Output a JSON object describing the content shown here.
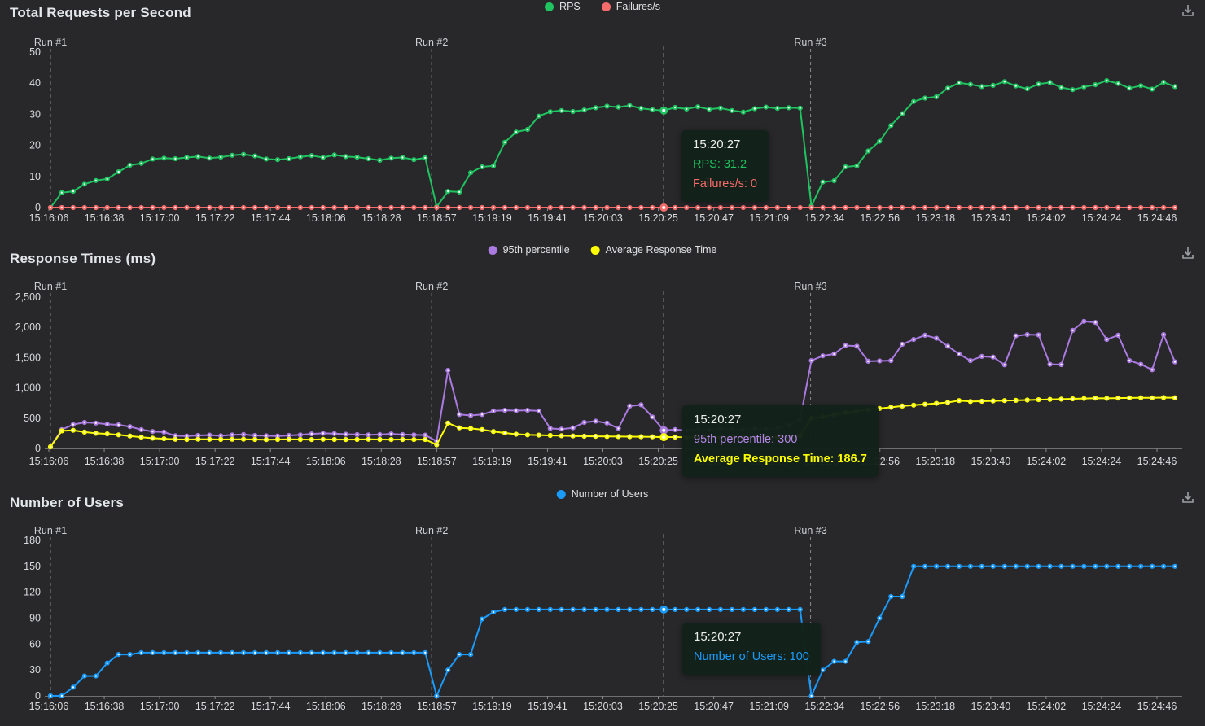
{
  "page": {
    "background": "#28282b"
  },
  "x_labels": [
    "15:16:06",
    "15:16:38",
    "15:17:00",
    "15:17:22",
    "15:17:44",
    "15:18:06",
    "15:18:28",
    "15:18:57",
    "15:19:19",
    "15:19:41",
    "15:20:03",
    "15:20:25",
    "15:20:47",
    "15:21:09",
    "15:22:34",
    "15:22:56",
    "15:23:18",
    "15:23:40",
    "15:24:02",
    "15:24:24",
    "15:24:46"
  ],
  "run_markers": [
    {
      "label": "Run #1",
      "frac": 0.0
    },
    {
      "label": "Run #2",
      "frac": 0.339
    },
    {
      "label": "Run #3",
      "frac": 0.676
    }
  ],
  "cursor": {
    "time": "15:20:27",
    "frac": 0.5454,
    "index": 54
  },
  "chart_data": [
    {
      "type": "line",
      "title": "Total Requests per Second",
      "y_max": 50,
      "y_ticks": [
        "0",
        "10",
        "20",
        "30",
        "40",
        "50"
      ],
      "legend": [
        {
          "label": "RPS",
          "color": "#1fc35f"
        },
        {
          "label": "Failures/s",
          "color": "#f96c6c"
        }
      ],
      "series": [
        {
          "name": "RPS",
          "color": "#1fc35f",
          "values": [
            0,
            4.8,
            5.2,
            7.5,
            8.7,
            9.2,
            11.5,
            13.6,
            14.2,
            15.6,
            15.9,
            15.7,
            16.1,
            16.4,
            15.9,
            16.2,
            16.8,
            17.1,
            16.6,
            15.6,
            15.4,
            15.7,
            16.3,
            16.7,
            16.1,
            16.9,
            16.4,
            16.2,
            15.7,
            15.2,
            15.9,
            16.1,
            15.4,
            16,
            0.3,
            5.2,
            5,
            11.2,
            13.1,
            13.4,
            21,
            24.3,
            25.1,
            29.4,
            30.8,
            31.2,
            30.9,
            31.4,
            32.1,
            32.6,
            32.3,
            32.8,
            31.9,
            31.5,
            31.2,
            32.2,
            31.7,
            32.4,
            31.6,
            32,
            31.2,
            30.7,
            31.8,
            32.3,
            31.9,
            32.1,
            32,
            0.5,
            8.2,
            8.6,
            13.1,
            13.4,
            18.2,
            21.3,
            26.4,
            30.2,
            34.1,
            35.2,
            35.6,
            38.4,
            40.1,
            39.6,
            38.9,
            39.3,
            40.5,
            39.1,
            38.2,
            39.7,
            40.2,
            38.6,
            37.9,
            38.8,
            39.5,
            40.8,
            39.9,
            38.4,
            39.2,
            38.1,
            40.3,
            38.9
          ]
        },
        {
          "name": "Failures/s",
          "color": "#f96c6c",
          "values": [
            0,
            0,
            0,
            0,
            0,
            0,
            0,
            0,
            0,
            0,
            0,
            0,
            0,
            0,
            0,
            0,
            0,
            0,
            0,
            0,
            0,
            0,
            0,
            0,
            0,
            0,
            0,
            0,
            0,
            0,
            0,
            0,
            0,
            0,
            0,
            0,
            0,
            0,
            0,
            0,
            0,
            0,
            0,
            0,
            0,
            0,
            0,
            0,
            0,
            0,
            0,
            0,
            0,
            0,
            0,
            0,
            0,
            0,
            0,
            0,
            0,
            0,
            0,
            0,
            0,
            0,
            0,
            0,
            0,
            0,
            0,
            0,
            0,
            0,
            0,
            0,
            0,
            0,
            0,
            0,
            0,
            0,
            0,
            0,
            0,
            0,
            0,
            0,
            0,
            0,
            0,
            0,
            0,
            0,
            0,
            0,
            0,
            0,
            0,
            0
          ]
        }
      ],
      "tooltip": {
        "title": "15:20:27",
        "rows": [
          {
            "text": "RPS: 31.2",
            "color": "#1fc35f",
            "bold": false
          },
          {
            "text": "Failures/s: 0",
            "color": "#f96c6c",
            "bold": false
          }
        ]
      }
    },
    {
      "type": "line",
      "title": "Response Times (ms)",
      "y_max": 2500,
      "y_ticks": [
        "0",
        "500",
        "1,000",
        "1,500",
        "2,000",
        "2,500"
      ],
      "legend": [
        {
          "label": "95th percentile",
          "color": "#aa7ae0"
        },
        {
          "label": "Average Response Time",
          "color": "#fdff00"
        }
      ],
      "series": [
        {
          "name": "95th percentile",
          "color": "#aa7ae0",
          "values": [
            30,
            310,
            395,
            430,
            420,
            400,
            390,
            360,
            310,
            280,
            270,
            210,
            205,
            215,
            220,
            210,
            225,
            230,
            215,
            210,
            205,
            215,
            225,
            240,
            250,
            245,
            235,
            230,
            225,
            230,
            240,
            230,
            225,
            220,
            120,
            1290,
            560,
            545,
            560,
            620,
            630,
            625,
            630,
            620,
            330,
            320,
            340,
            430,
            450,
            420,
            330,
            700,
            720,
            520,
            300,
            310,
            300,
            320,
            310,
            330,
            320,
            310,
            330,
            320,
            340,
            380,
            480,
            1450,
            1530,
            1560,
            1700,
            1690,
            1440,
            1445,
            1450,
            1720,
            1800,
            1870,
            1820,
            1690,
            1560,
            1450,
            1520,
            1510,
            1380,
            1860,
            1880,
            1875,
            1390,
            1385,
            1950,
            2100,
            2080,
            1800,
            1870,
            1450,
            1390,
            1300,
            1880,
            1430
          ]
        },
        {
          "name": "Average Response Time",
          "color": "#fdff00",
          "values": [
            25,
            290,
            300,
            270,
            250,
            240,
            225,
            205,
            185,
            170,
            160,
            150,
            148,
            152,
            150,
            148,
            150,
            152,
            148,
            145,
            148,
            150,
            148,
            147,
            150,
            148,
            146,
            148,
            150,
            148,
            147,
            148,
            146,
            148,
            60,
            420,
            340,
            330,
            310,
            280,
            255,
            235,
            225,
            220,
            215,
            210,
            205,
            202,
            200,
            198,
            196,
            195,
            193,
            192,
            186.7,
            188,
            186,
            185,
            186,
            185,
            184,
            185,
            184,
            185,
            186,
            188,
            210,
            500,
            520,
            560,
            590,
            615,
            640,
            660,
            680,
            700,
            715,
            730,
            745,
            760,
            790,
            775,
            780,
            785,
            790,
            795,
            800,
            805,
            810,
            815,
            820,
            825,
            830,
            828,
            832,
            835,
            838,
            836,
            840,
            838
          ]
        }
      ],
      "tooltip": {
        "title": "15:20:27",
        "rows": [
          {
            "text": "95th percentile: 300",
            "color": "#b585e8",
            "bold": false
          },
          {
            "text": "Average Response Time: 186.7",
            "color": "#fdff00",
            "bold": true
          }
        ]
      }
    },
    {
      "type": "line",
      "title": "Number of Users",
      "y_max": 180,
      "y_ticks": [
        "0",
        "30",
        "60",
        "90",
        "120",
        "150",
        "180"
      ],
      "legend": [
        {
          "label": "Number of Users",
          "color": "#1a9bfc"
        }
      ],
      "series": [
        {
          "name": "Number of Users",
          "color": "#1a9bfc",
          "values": [
            0,
            0,
            10,
            23,
            23,
            38,
            48,
            48,
            50,
            50,
            50,
            50,
            50,
            50,
            50,
            50,
            50,
            50,
            50,
            50,
            50,
            50,
            50,
            50,
            50,
            50,
            50,
            50,
            50,
            50,
            50,
            50,
            50,
            50,
            0,
            30,
            48,
            48,
            89,
            97,
            100,
            100,
            100,
            100,
            100,
            100,
            100,
            100,
            100,
            100,
            100,
            100,
            100,
            100,
            100,
            100,
            100,
            100,
            100,
            100,
            100,
            100,
            100,
            100,
            100,
            100,
            100,
            0,
            30,
            40,
            40,
            62,
            63,
            90,
            115,
            115,
            150,
            150,
            150,
            150,
            150,
            150,
            150,
            150,
            150,
            150,
            150,
            150,
            150,
            150,
            150,
            150,
            150,
            150,
            150,
            150,
            150,
            150,
            150,
            150
          ]
        }
      ],
      "tooltip": {
        "title": "15:20:27",
        "rows": [
          {
            "text": "Number of Users: 100",
            "color": "#1a9bfc",
            "bold": false
          }
        ]
      }
    }
  ]
}
